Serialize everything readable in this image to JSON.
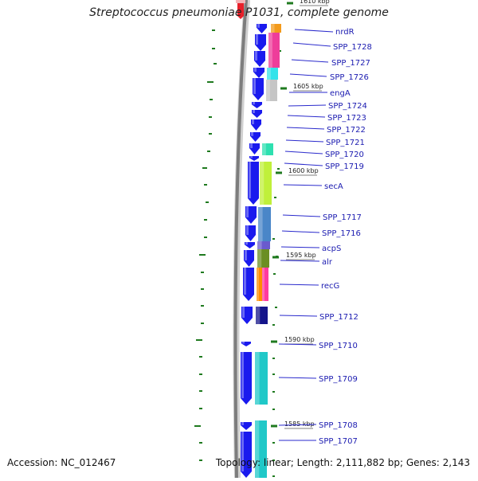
{
  "title": "Streptococcus pneumoniae P1031, complete genome",
  "accession": "Accession: NC_012467",
  "summary": "Topology: linear; Length: 2,111,882 bp; Genes: 2,143",
  "colors": {
    "gene_arrow": "#1a1aee",
    "label": "#1a1ab0",
    "leader": "#2a2acc",
    "tick": "#1f7a1f",
    "backbone": "#7d7d7d"
  },
  "scale_marks": [
    "1610 kbp",
    "1605 kbp",
    "1600 kbp",
    "1595 kbp",
    "1590 kbp",
    "1585 kbp"
  ],
  "genes": [
    "nrdR",
    "SPP_1728",
    "SPP_1727",
    "SPP_1726",
    "engA",
    "SPP_1724",
    "SPP_1723",
    "SPP_1722",
    "SPP_1721",
    "SPP_1720",
    "SPP_1719",
    "secA",
    "SPP_1717",
    "SPP_1716",
    "acpS",
    "alr",
    "recG",
    "SPP_1712",
    "SPP_1710",
    "SPP_1709",
    "SPP_1708",
    "SPP_1707"
  ]
}
